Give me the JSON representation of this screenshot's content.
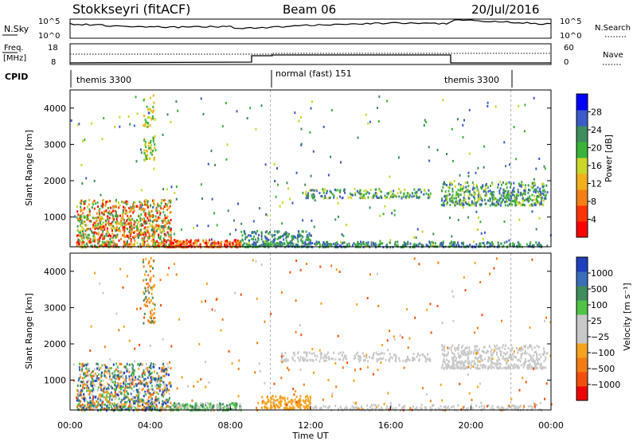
{
  "header": {
    "station": "Stokkseyri (fitACF)",
    "beam": "Beam 06",
    "date": "20/Jul/2016"
  },
  "panels": {
    "nsky": {
      "left_label": "N.Sky",
      "right_label": "N.Search",
      "left_ticks": [
        "10^5",
        "10^0"
      ],
      "right_ticks": [
        "10^5",
        "10^0"
      ]
    },
    "freq": {
      "left_label_1": "Freq.",
      "left_label_2": "[MHz]",
      "right_label": "Nave",
      "left_ticks": [
        "18",
        "8"
      ],
      "right_ticks": [
        "60",
        "0"
      ]
    },
    "cpid": {
      "label": "CPID",
      "modes": [
        {
          "name": "themis 3300",
          "start": 0,
          "end": 10
        },
        {
          "name": "normal (fast) 151",
          "start": 10,
          "end": 19
        },
        {
          "name": "themis 3300",
          "start": 19,
          "end": 22
        }
      ]
    }
  },
  "chart_data": [
    {
      "type": "heatmap",
      "name": "power",
      "ylabel": "Slant Range [km]",
      "ylim": [
        180,
        4500
      ],
      "xlim": [
        0,
        24
      ],
      "y_ticks": [
        1000,
        2000,
        3000,
        4000
      ],
      "colorbar": {
        "label": "Power [dB]",
        "ticks": [
          "4",
          "8",
          "12",
          "16",
          "20",
          "24",
          "28"
        ],
        "colors": [
          "#0000ff",
          "#3c5ac8",
          "#3f8c5e",
          "#39b339",
          "#c9d62a",
          "#f0b11c",
          "#f57f17",
          "#ff3300",
          "#ff0000"
        ]
      }
    },
    {
      "type": "heatmap",
      "name": "velocity",
      "ylabel": "Slant Range [km]",
      "xlabel": "Time UT",
      "ylim": [
        180,
        4500
      ],
      "xlim": [
        0,
        24
      ],
      "y_ticks": [
        1000,
        2000,
        3000,
        4000
      ],
      "x_ticks": [
        "00:00",
        "04:00",
        "08:00",
        "12:00",
        "16:00",
        "20:00",
        "00:00"
      ],
      "colorbar": {
        "label": "Velocity [m s⁻¹]",
        "ticks": [
          "1000",
          "500",
          "100",
          "25",
          "−25",
          "−100",
          "−500",
          "−1000"
        ],
        "colors": [
          "#1f3fbf",
          "#3b6db8",
          "#3f8c5e",
          "#4fc447",
          "#c8c8c8",
          "#c8c8c8",
          "#f5a21e",
          "#f47c15",
          "#f24f0f",
          "#ee0000"
        ]
      }
    }
  ]
}
